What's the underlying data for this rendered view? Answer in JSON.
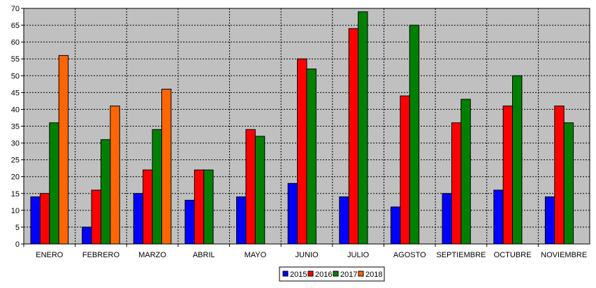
{
  "chart_data": {
    "type": "bar",
    "title": "",
    "xlabel": "",
    "ylabel": "",
    "ylim": [
      0,
      70
    ],
    "y_ticks": [
      0,
      5,
      10,
      15,
      20,
      25,
      30,
      35,
      40,
      45,
      50,
      55,
      60,
      65,
      70
    ],
    "grid": true,
    "legend_position": "bottom",
    "background_color": "#c0c0c0",
    "categories": [
      "ENERO",
      "FEBRERO",
      "MARZO",
      "ABRIL",
      "MAYO",
      "JUNIO",
      "JULIO",
      "AGOSTO",
      "SEPTIEMBRE",
      "OCTUBRE",
      "NOVIEMBRE"
    ],
    "series": [
      {
        "name": "2015",
        "color": "#0000ff",
        "values": [
          14,
          5,
          15,
          13,
          14,
          18,
          14,
          11,
          15,
          16,
          14
        ]
      },
      {
        "name": "2016",
        "color": "#ff0000",
        "values": [
          15,
          16,
          22,
          22,
          34,
          55,
          64,
          44,
          36,
          41,
          41
        ]
      },
      {
        "name": "2017",
        "color": "#008000",
        "values": [
          36,
          31,
          34,
          22,
          32,
          52,
          69,
          65,
          43,
          50,
          36
        ]
      },
      {
        "name": "2018",
        "color": "#ff6600",
        "values": [
          56,
          41,
          46,
          null,
          null,
          null,
          null,
          null,
          null,
          null,
          null
        ]
      }
    ]
  }
}
